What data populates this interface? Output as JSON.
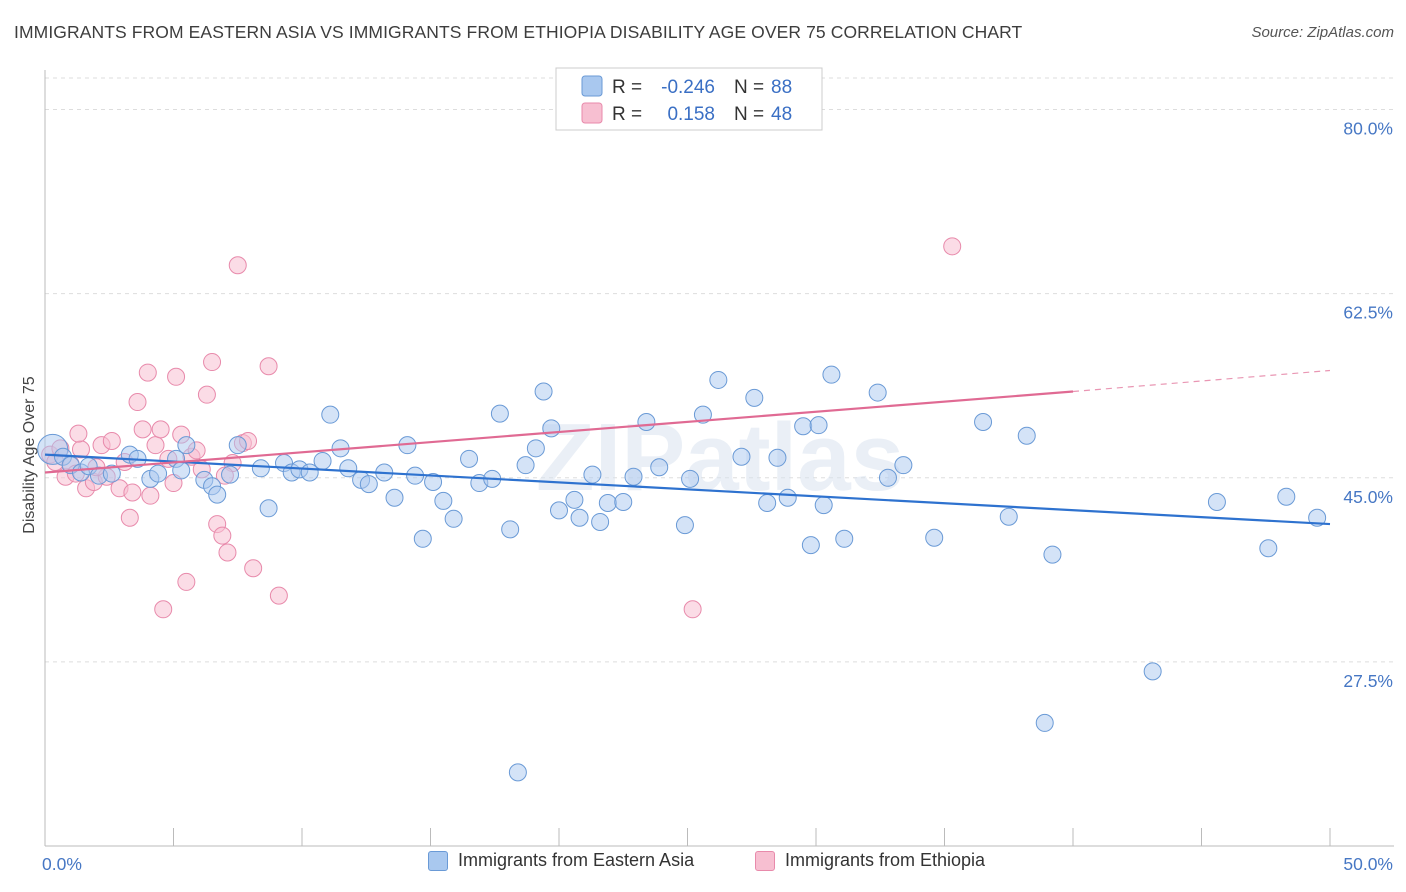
{
  "title": "IMMIGRANTS FROM EASTERN ASIA VS IMMIGRANTS FROM ETHIOPIA DISABILITY AGE OVER 75 CORRELATION CHART",
  "source": "Source: ZipAtlas.com",
  "watermark": "ZIPatlas",
  "colors": {
    "blue_fill": "#a9c8ef",
    "blue_stroke": "#6a9ad6",
    "blue_line": "#2e72cf",
    "pink_fill": "#f7bfd1",
    "pink_stroke": "#e88aab",
    "pink_line": "#e06a93",
    "tick_text": "#4677c4",
    "grid": "#dddddd"
  },
  "legend": {
    "rows": [
      {
        "r_label": "R =",
        "r_value": "-0.246",
        "n_label": "N =",
        "n_value": "88"
      },
      {
        "r_label": "R =",
        "r_value": "0.158",
        "n_label": "N =",
        "n_value": "48"
      }
    ]
  },
  "bottom_legend": [
    "Immigrants from Eastern Asia",
    "Immigrants from Ethiopia"
  ],
  "chart_data": {
    "type": "scatter",
    "title": "IMMIGRANTS FROM EASTERN ASIA VS IMMIGRANTS FROM ETHIOPIA DISABILITY AGE OVER 75 CORRELATION CHART",
    "xlabel": "",
    "ylabel": "Disability Age Over 75",
    "xlim": [
      0,
      50
    ],
    "ylim": [
      10,
      83
    ],
    "x_tick_labels": [
      "0.0%",
      "50.0%"
    ],
    "y_ticks": [
      27.5,
      45.0,
      62.5,
      80.0
    ],
    "y_tick_labels": [
      "27.5%",
      "45.0%",
      "62.5%",
      "80.0%"
    ],
    "grid": true,
    "legend_position": "top-center",
    "series": [
      {
        "name": "Immigrants from Eastern Asia",
        "color": "#a9c8ef",
        "trend": {
          "x": [
            0,
            50
          ],
          "y": [
            47.2,
            40.6
          ]
        },
        "points": [
          [
            0.3,
            47.7
          ],
          [
            0.7,
            47.0
          ],
          [
            1.0,
            46.2
          ],
          [
            1.4,
            45.5
          ],
          [
            1.7,
            46.1
          ],
          [
            2.1,
            45.2
          ],
          [
            2.6,
            45.4
          ],
          [
            3.3,
            47.2
          ],
          [
            3.6,
            46.8
          ],
          [
            4.1,
            44.9
          ],
          [
            4.4,
            45.4
          ],
          [
            5.1,
            46.8
          ],
          [
            5.3,
            45.7
          ],
          [
            5.5,
            48.1
          ],
          [
            6.2,
            44.8
          ],
          [
            6.5,
            44.2
          ],
          [
            6.7,
            43.4
          ],
          [
            7.2,
            45.3
          ],
          [
            7.5,
            48.1
          ],
          [
            8.4,
            45.9
          ],
          [
            8.7,
            42.1
          ],
          [
            9.3,
            46.4
          ],
          [
            9.6,
            45.5
          ],
          [
            9.9,
            45.8
          ],
          [
            10.3,
            45.5
          ],
          [
            10.8,
            46.6
          ],
          [
            11.1,
            51.0
          ],
          [
            11.5,
            47.8
          ],
          [
            11.8,
            45.9
          ],
          [
            12.3,
            44.8
          ],
          [
            12.6,
            44.4
          ],
          [
            13.2,
            45.5
          ],
          [
            13.6,
            43.1
          ],
          [
            14.1,
            48.1
          ],
          [
            14.4,
            45.2
          ],
          [
            14.7,
            39.2
          ],
          [
            15.1,
            44.6
          ],
          [
            15.5,
            42.8
          ],
          [
            15.9,
            41.1
          ],
          [
            16.5,
            46.8
          ],
          [
            16.9,
            44.5
          ],
          [
            17.4,
            44.9
          ],
          [
            17.7,
            51.1
          ],
          [
            18.1,
            40.1
          ],
          [
            18.7,
            46.2
          ],
          [
            19.1,
            47.8
          ],
          [
            19.4,
            53.2
          ],
          [
            19.7,
            49.7
          ],
          [
            20.0,
            41.9
          ],
          [
            20.6,
            42.9
          ],
          [
            20.8,
            41.2
          ],
          [
            21.3,
            45.3
          ],
          [
            21.6,
            40.8
          ],
          [
            21.9,
            42.6
          ],
          [
            22.5,
            42.7
          ],
          [
            22.9,
            45.1
          ],
          [
            23.4,
            50.3
          ],
          [
            23.9,
            46.0
          ],
          [
            24.9,
            40.5
          ],
          [
            25.1,
            44.9
          ],
          [
            25.6,
            51.0
          ],
          [
            26.2,
            54.3
          ],
          [
            27.1,
            47.0
          ],
          [
            27.6,
            52.6
          ],
          [
            28.1,
            42.6
          ],
          [
            28.5,
            46.9
          ],
          [
            28.9,
            43.1
          ],
          [
            29.5,
            49.9
          ],
          [
            29.8,
            38.6
          ],
          [
            30.1,
            50.0
          ],
          [
            30.3,
            42.4
          ],
          [
            30.6,
            54.8
          ],
          [
            31.1,
            39.2
          ],
          [
            32.4,
            53.1
          ],
          [
            32.8,
            45.0
          ],
          [
            33.4,
            46.2
          ],
          [
            34.6,
            39.3
          ],
          [
            36.5,
            50.3
          ],
          [
            37.5,
            41.3
          ],
          [
            38.2,
            49.0
          ],
          [
            39.2,
            37.7
          ],
          [
            43.1,
            26.6
          ],
          [
            45.6,
            42.7
          ],
          [
            47.6,
            38.3
          ],
          [
            48.3,
            43.2
          ],
          [
            49.5,
            41.2
          ],
          [
            38.9,
            21.7
          ],
          [
            18.4,
            17.0
          ]
        ]
      },
      {
        "name": "Immigrants from Ethiopia",
        "color": "#f7bfd1",
        "trend": {
          "x": [
            0,
            40
          ],
          "y": [
            45.5,
            53.2
          ]
        },
        "trend_dashed": {
          "x": [
            40,
            50
          ],
          "y": [
            53.2,
            55.2
          ]
        },
        "points": [
          [
            0.2,
            47.2
          ],
          [
            0.4,
            46.5
          ],
          [
            0.6,
            47.8
          ],
          [
            0.8,
            45.1
          ],
          [
            1.0,
            46.3
          ],
          [
            1.2,
            45.4
          ],
          [
            1.4,
            47.7
          ],
          [
            1.6,
            44.0
          ],
          [
            1.9,
            44.6
          ],
          [
            2.2,
            48.1
          ],
          [
            2.4,
            45.1
          ],
          [
            2.6,
            48.5
          ],
          [
            2.9,
            44.0
          ],
          [
            3.1,
            46.5
          ],
          [
            3.3,
            41.2
          ],
          [
            3.4,
            43.6
          ],
          [
            3.6,
            52.2
          ],
          [
            3.8,
            49.6
          ],
          [
            4.0,
            55.0
          ],
          [
            4.1,
            43.3
          ],
          [
            4.3,
            48.1
          ],
          [
            4.5,
            49.6
          ],
          [
            4.6,
            32.5
          ],
          [
            4.8,
            46.8
          ],
          [
            5.1,
            54.6
          ],
          [
            5.3,
            49.1
          ],
          [
            5.5,
            35.1
          ],
          [
            5.7,
            47.0
          ],
          [
            5.9,
            47.6
          ],
          [
            6.1,
            45.8
          ],
          [
            6.3,
            52.9
          ],
          [
            6.5,
            56.0
          ],
          [
            6.7,
            40.6
          ],
          [
            6.9,
            39.5
          ],
          [
            7.1,
            37.9
          ],
          [
            7.3,
            46.4
          ],
          [
            7.5,
            65.2
          ],
          [
            7.7,
            48.3
          ],
          [
            7.9,
            48.5
          ],
          [
            8.1,
            36.4
          ],
          [
            8.7,
            55.6
          ],
          [
            9.1,
            33.8
          ],
          [
            25.2,
            32.5
          ],
          [
            35.3,
            67.0
          ],
          [
            1.3,
            49.2
          ],
          [
            2.0,
            46.0
          ],
          [
            7.0,
            45.2
          ],
          [
            5.0,
            44.5
          ]
        ]
      }
    ]
  }
}
